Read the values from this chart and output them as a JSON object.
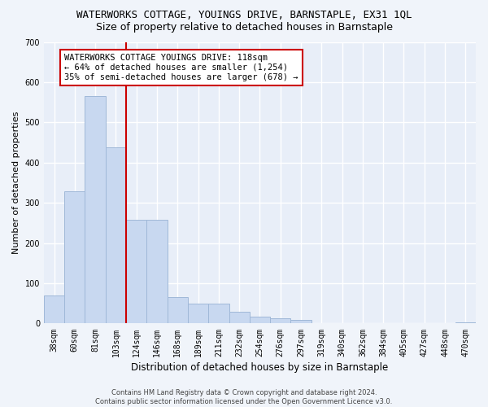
{
  "title": "WATERWORKS COTTAGE, YOUINGS DRIVE, BARNSTAPLE, EX31 1QL",
  "subtitle": "Size of property relative to detached houses in Barnstaple",
  "xlabel": "Distribution of detached houses by size in Barnstaple",
  "ylabel": "Number of detached properties",
  "categories": [
    "38sqm",
    "60sqm",
    "81sqm",
    "103sqm",
    "124sqm",
    "146sqm",
    "168sqm",
    "189sqm",
    "211sqm",
    "232sqm",
    "254sqm",
    "276sqm",
    "297sqm",
    "319sqm",
    "340sqm",
    "362sqm",
    "384sqm",
    "405sqm",
    "427sqm",
    "448sqm",
    "470sqm"
  ],
  "values": [
    70,
    328,
    565,
    438,
    258,
    258,
    65,
    50,
    50,
    30,
    18,
    13,
    10,
    0,
    0,
    0,
    0,
    0,
    0,
    0,
    3
  ],
  "bar_color": "#c8d8f0",
  "bar_edge_color": "#a0b8d8",
  "vline_color": "#cc0000",
  "annotation_text": "WATERWORKS COTTAGE YOUINGS DRIVE: 118sqm\n← 64% of detached houses are smaller (1,254)\n35% of semi-detached houses are larger (678) →",
  "annotation_box_color": "white",
  "annotation_box_edge": "#cc0000",
  "ylim": [
    0,
    700
  ],
  "yticks": [
    0,
    100,
    200,
    300,
    400,
    500,
    600,
    700
  ],
  "footer": "Contains HM Land Registry data © Crown copyright and database right 2024.\nContains public sector information licensed under the Open Government Licence v3.0.",
  "fig_bg_color": "#f0f4fa",
  "bg_color": "#e8eef8",
  "grid_color": "#ffffff",
  "title_fontsize": 9,
  "subtitle_fontsize": 9,
  "tick_fontsize": 7,
  "ylabel_fontsize": 8,
  "xlabel_fontsize": 8.5,
  "footer_fontsize": 6,
  "annotation_fontsize": 7.5
}
